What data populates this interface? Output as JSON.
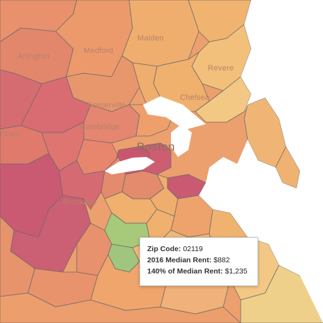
{
  "map": {
    "place_labels": {
      "arlington": "Arlington",
      "medford": "Medford",
      "malden": "Malden",
      "revere": "Revere",
      "chelsea": "Chelsea",
      "somerville": "Somerville",
      "cambridge": "Cambridge",
      "boston": "Boston",
      "watertown": "rtown",
      "brookline": "Brookline"
    },
    "colors": {
      "water": "#ffffff",
      "dark_red": "#c9566f",
      "red_pink": "#d66b74",
      "coral": "#e0806c",
      "orange": "#e99a6a",
      "light_orange": "#f0b06e",
      "pale": "#f3c884",
      "yellow": "#efd88e",
      "green": "#a7c97a"
    }
  },
  "tooltip": {
    "zip_label": "Zip Code:",
    "zip_value": "02119",
    "median_label": "2016 Median Rent:",
    "median_value": "$882",
    "pct_label": "140% of Median Rent:",
    "pct_value": "$1,235"
  }
}
